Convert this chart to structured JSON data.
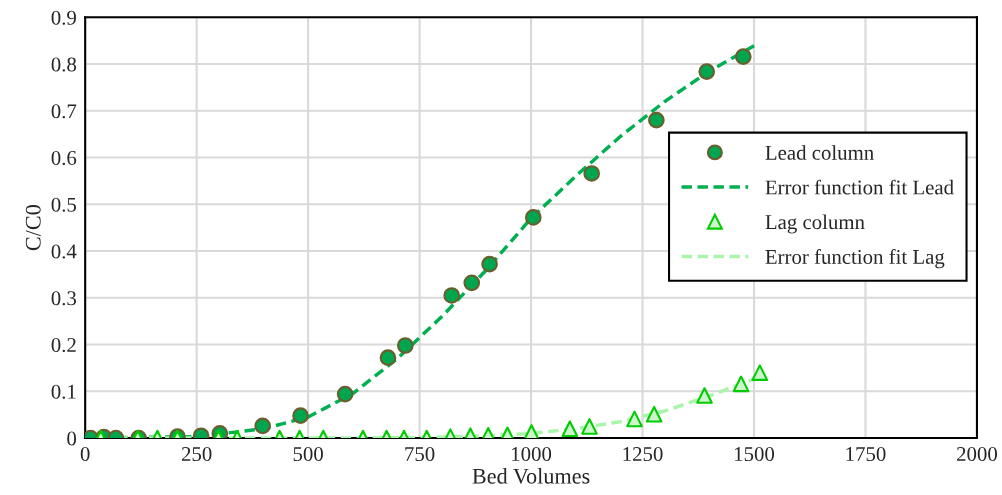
{
  "chart_data": {
    "type": "scatter",
    "xlabel": "Bed Volumes",
    "ylabel": "C/C0",
    "xlim": [
      0,
      2000
    ],
    "xticks": [
      0,
      250,
      500,
      750,
      1000,
      1250,
      1500,
      1750,
      2000
    ],
    "ylim": [
      0,
      0.9
    ],
    "yticks": [
      0,
      0.1,
      0.2,
      0.3,
      0.4,
      0.5,
      0.6,
      0.7,
      0.8,
      0.9
    ],
    "grid": true,
    "legend": "right",
    "series": [
      {
        "name": "Lead column",
        "marker": "circle",
        "color": "#00a54f",
        "x": [
          12,
          42,
          69,
          120,
          207,
          260,
          302,
          398,
          483,
          583,
          679,
          718,
          822,
          867,
          907,
          1005,
          1136,
          1281,
          1394,
          1476
        ],
        "values": [
          0,
          0.002,
          0,
          0,
          0.003,
          0.005,
          0.01,
          0.026,
          0.048,
          0.094,
          0.172,
          0.198,
          0.305,
          0.332,
          0.372,
          0.472,
          0.566,
          0.68,
          0.784,
          0.816
        ]
      },
      {
        "name": "Error function fit Lead",
        "type": "line",
        "line_style": "dashed",
        "color": "#00b050",
        "x": [
          0,
          250,
          400,
          500,
          600,
          700,
          800,
          900,
          1000,
          1100,
          1200,
          1300,
          1400,
          1511
        ],
        "values": [
          0,
          0.003,
          0.02,
          0.045,
          0.095,
          0.17,
          0.26,
          0.36,
          0.47,
          0.56,
          0.645,
          0.72,
          0.785,
          0.845
        ]
      },
      {
        "name": "Lag column",
        "marker": "triangle",
        "color": "#00cc00",
        "x": [
          35,
          118,
          162,
          207,
          299,
          341,
          436,
          481,
          534,
          623,
          676,
          715,
          766,
          819,
          864,
          904,
          947,
          1001,
          1087,
          1131,
          1232,
          1276,
          1389,
          1471,
          1513
        ],
        "values": [
          0,
          0,
          0,
          0,
          0,
          0,
          0,
          0,
          0,
          0,
          0,
          0,
          0,
          0.003,
          0.005,
          0.006,
          0.007,
          0.012,
          0.02,
          0.025,
          0.041,
          0.051,
          0.091,
          0.116,
          0.14
        ]
      },
      {
        "name": "Error function fit Lag",
        "type": "line",
        "line_style": "dashed",
        "color": "#a9f5a9",
        "x": [
          0,
          600,
          800,
          900,
          1000,
          1100,
          1200,
          1300,
          1400,
          1510
        ],
        "values": [
          0,
          0,
          0.002,
          0.005,
          0.01,
          0.02,
          0.035,
          0.058,
          0.09,
          0.13
        ]
      }
    ]
  }
}
